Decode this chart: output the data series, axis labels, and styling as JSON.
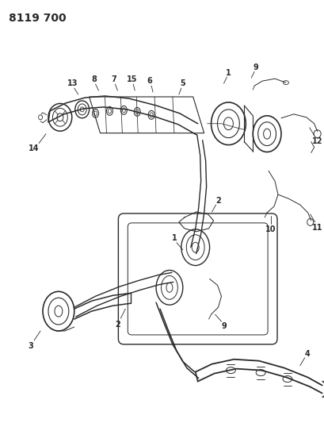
{
  "title": "8119 700",
  "bg_color": "#ffffff",
  "line_color": "#2a2a2a",
  "title_fontsize": 10,
  "label_fontsize": 7,
  "fig_width": 4.1,
  "fig_height": 5.33,
  "dpi": 100
}
